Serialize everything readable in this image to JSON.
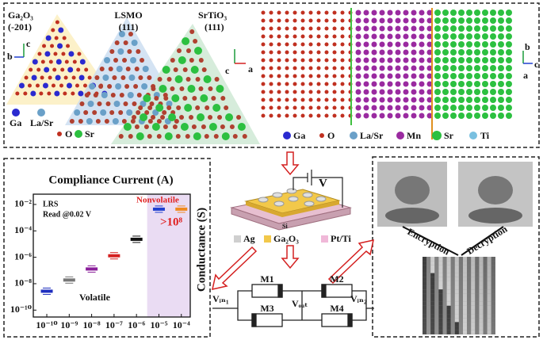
{
  "crystal_panel": {
    "ga2o3": "Ga₂O₃",
    "ga2o3_plane": "(-201)",
    "lsmo": "LSMO",
    "lsmo_plane": "(111)",
    "srtio3": "SrTiO₃",
    "srtio3_plane": "(111)",
    "axes_left": [
      "c",
      "b"
    ],
    "axes_right": [
      "c",
      "a"
    ],
    "legend": [
      "Ga",
      "La/Sr",
      "O",
      "Sr"
    ]
  },
  "structure_panel": {
    "axes": [
      "b",
      "c",
      "a"
    ],
    "legend": [
      "Ga",
      "O",
      "La/Sr",
      "Mn",
      "Sr",
      "Ti"
    ]
  },
  "device": {
    "voltage": "V",
    "substrate": "Si",
    "legend": [
      "Ag",
      "Ga₂O₃",
      "Pt/Ti"
    ]
  },
  "circuit": {
    "memristors": [
      "M1",
      "M2",
      "M3",
      "M4"
    ],
    "vin1": "Vᵢₙ₁",
    "vout": "Vₒᵤₜ",
    "vin2": "Vᵢₙ₂"
  },
  "encryption_panel": {
    "encryption": "Encryption",
    "decryption": "Decryption"
  },
  "chart_data": {
    "type": "box",
    "xlabel": "Compliance Current (A)",
    "ylabel": "Conductance (S)",
    "x": [
      1e-10,
      1e-09,
      1e-08,
      1e-07,
      1e-06,
      1e-05,
      0.0001
    ],
    "values": [
      2.7e-09,
      1.9e-08,
      1.3e-07,
      1.3e-06,
      2.3e-05,
      0.0044,
      0.0044
    ],
    "colors": [
      "#1f2fbf",
      "#777777",
      "#8a1f9a",
      "#d42020",
      "#111111",
      "#2040d0",
      "#f08a20"
    ],
    "xlim": [
      2.5e-11,
      0.00025
    ],
    "ylim": [
      3e-11,
      0.06
    ],
    "xscale": "log",
    "yscale": "log",
    "xticks": [
      {
        "value": 1e-10,
        "label": "10⁻¹⁰"
      },
      {
        "value": 1e-09,
        "label": "10⁻⁹"
      },
      {
        "value": 1e-08,
        "label": "10⁻⁸"
      },
      {
        "value": 1e-07,
        "label": "10⁻⁷"
      },
      {
        "value": 1e-06,
        "label": "10⁻⁶"
      },
      {
        "value": 1e-05,
        "label": "10⁻⁵"
      },
      {
        "value": 0.0001,
        "label": "10⁻⁴"
      }
    ],
    "yticks": [
      {
        "value": 1e-10,
        "label": "10⁻¹⁰"
      },
      {
        "value": 1e-08,
        "label": "10⁻⁸"
      },
      {
        "value": 1e-06,
        "label": "10⁻⁶"
      },
      {
        "value": 0.0001,
        "label": "10⁻⁴"
      },
      {
        "value": 0.01,
        "label": "10⁻²"
      }
    ],
    "highlight": {
      "xlim": [
        3e-06,
        0.00025
      ],
      "color": "#eadcf3"
    },
    "annotations": [
      "LRS",
      "Read @0.02 V",
      "Nonvolatile",
      ">10⁸",
      "Volatile"
    ]
  }
}
